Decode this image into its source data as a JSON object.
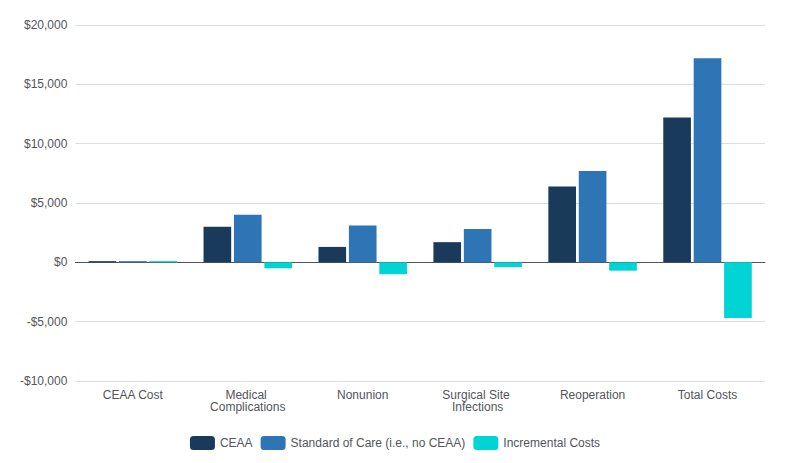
{
  "chart_data": {
    "type": "bar",
    "categories": [
      "CEAA Cost",
      "Medical Complications",
      "Nonunion",
      "Surgical Site Infections",
      "Reoperation",
      "Total Costs"
    ],
    "series": [
      {
        "name": "CEAA",
        "color": "#1a3a5c",
        "values": [
          100,
          3000,
          1300,
          1700,
          6400,
          12200
        ]
      },
      {
        "name": "Standard of Care (i.e., no CEAA)",
        "color": "#2e75b6",
        "values": [
          100,
          4000,
          3100,
          2800,
          7700,
          17200
        ]
      },
      {
        "name": "Incremental Costs",
        "color": "#00d4d4",
        "values": [
          100,
          -500,
          -1000,
          -400,
          -700,
          -4700
        ]
      }
    ],
    "ylim": [
      -10000,
      20000
    ],
    "yticks": [
      {
        "value": -10000,
        "label": "-$10,000"
      },
      {
        "value": -5000,
        "label": "-$5,000"
      },
      {
        "value": 0,
        "label": "$0"
      },
      {
        "value": 5000,
        "label": "$5,000"
      },
      {
        "value": 10000,
        "label": "$10,000"
      },
      {
        "value": 15000,
        "label": "$15,000"
      },
      {
        "value": 20000,
        "label": "$20,000"
      }
    ],
    "grid": true,
    "legend": "bottom"
  }
}
